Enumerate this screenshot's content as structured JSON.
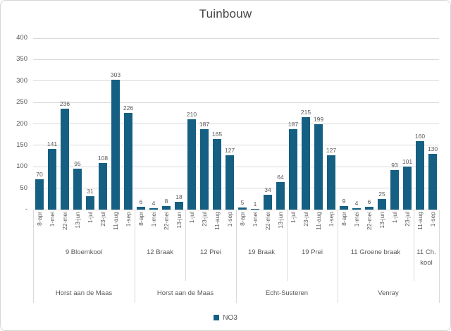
{
  "chart_data": {
    "type": "bar",
    "title": "Tuinbouw",
    "series_name": "NO3",
    "bar_color": "#156082",
    "ylim": [
      0,
      400
    ],
    "yticks": [
      0,
      50,
      100,
      150,
      200,
      250,
      300,
      350,
      400
    ],
    "ytick_labels": [
      "-",
      "50",
      "100",
      "150",
      "200",
      "250",
      "300",
      "350",
      "400"
    ],
    "grid": true,
    "legend_position": "bottom",
    "regions": [
      {
        "label": "Horst aan de Maas",
        "groups": [
          {
            "label": "9 Bloemkool",
            "categories": [
              "8-apr",
              "1-mei",
              "22-mei",
              "13-jun",
              "1-jul",
              "23-jul",
              "11-aug",
              "1-sep"
            ],
            "values": [
              70,
              141,
              236,
              95,
              31,
              108,
              303,
              226
            ]
          }
        ]
      },
      {
        "label": "Horst aan de Maas",
        "groups": [
          {
            "label": "12 Braak",
            "categories": [
              "8-apr",
              "1-mei",
              "22-mei",
              "13-jun"
            ],
            "values": [
              6,
              4,
              8,
              18
            ]
          },
          {
            "label": "12 Prei",
            "categories": [
              "1-jul",
              "23-jul",
              "11-aug",
              "1-sep"
            ],
            "values": [
              210,
              187,
              165,
              127
            ]
          }
        ]
      },
      {
        "label": "Echt-Susteren",
        "groups": [
          {
            "label": "19 Braak",
            "categories": [
              "8-apr",
              "1-mei",
              "22-mei",
              "13-jun"
            ],
            "values": [
              5,
              1,
              34,
              64
            ]
          },
          {
            "label": "19 Prei",
            "categories": [
              "1-jul",
              "23-jul",
              "11-aug",
              "1-sep"
            ],
            "values": [
              187,
              215,
              199,
              127
            ]
          }
        ]
      },
      {
        "label": "Venray",
        "groups": [
          {
            "label": "11 Groene braak",
            "categories": [
              "8-apr",
              "1-mei",
              "22-mei",
              "13-jun",
              "1-jul",
              "23-jul"
            ],
            "values": [
              9,
              4,
              6,
              25,
              93,
              101
            ]
          },
          {
            "label": "11 Ch. kool",
            "categories": [
              "11-aug",
              "1-sep"
            ],
            "values": [
              160,
              130
            ]
          }
        ]
      }
    ]
  }
}
